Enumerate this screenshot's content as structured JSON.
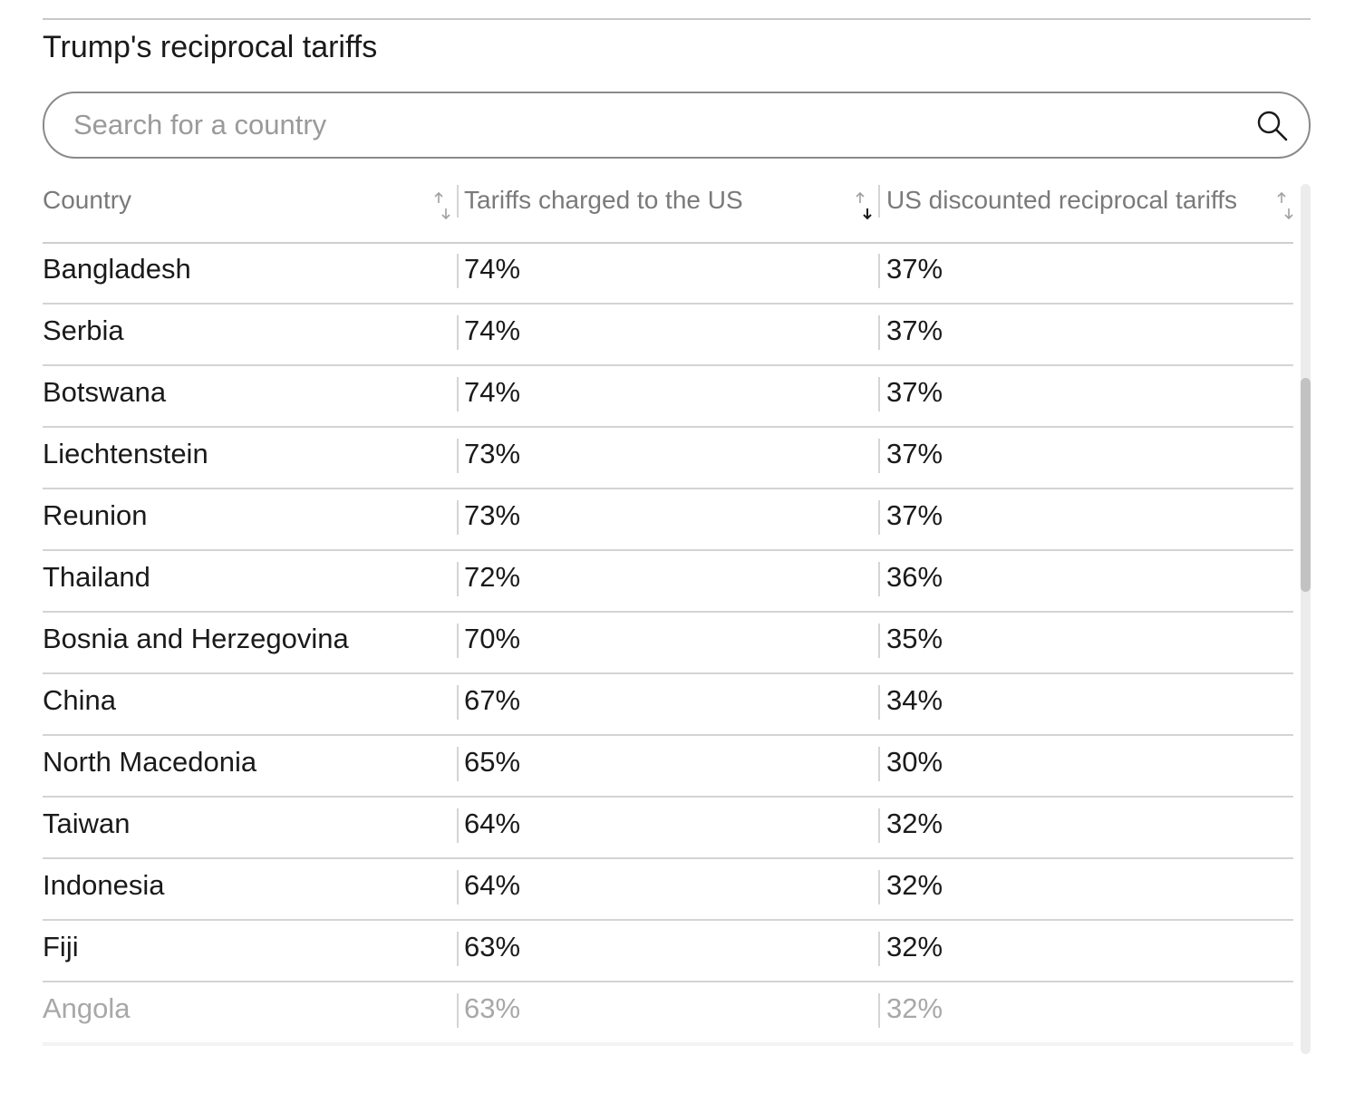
{
  "widget": {
    "title": "Trump's reciprocal tariffs"
  },
  "search": {
    "placeholder": "Search for a country",
    "value": "",
    "icon": "search-icon"
  },
  "table": {
    "columns": [
      {
        "label": "Country",
        "sort": "none"
      },
      {
        "label": "Tariffs charged to the US",
        "sort": "descending"
      },
      {
        "label": "US discounted reciprocal tariffs",
        "sort": "none"
      }
    ],
    "rows": [
      {
        "country": "Bangladesh",
        "charged": "74%",
        "reciprocal": "37%"
      },
      {
        "country": "Serbia",
        "charged": "74%",
        "reciprocal": "37%"
      },
      {
        "country": "Botswana",
        "charged": "74%",
        "reciprocal": "37%"
      },
      {
        "country": "Liechtenstein",
        "charged": "73%",
        "reciprocal": "37%"
      },
      {
        "country": "Reunion",
        "charged": "73%",
        "reciprocal": "37%"
      },
      {
        "country": "Thailand",
        "charged": "72%",
        "reciprocal": "36%"
      },
      {
        "country": "Bosnia and Herzegovina",
        "charged": "70%",
        "reciprocal": "35%"
      },
      {
        "country": "China",
        "charged": "67%",
        "reciprocal": "34%"
      },
      {
        "country": "North Macedonia",
        "charged": "65%",
        "reciprocal": "30%"
      },
      {
        "country": "Taiwan",
        "charged": "64%",
        "reciprocal": "32%"
      },
      {
        "country": "Indonesia",
        "charged": "64%",
        "reciprocal": "32%"
      },
      {
        "country": "Fiji",
        "charged": "63%",
        "reciprocal": "32%"
      },
      {
        "country": "Angola",
        "charged": "63%",
        "reciprocal": "32%"
      }
    ]
  },
  "colors": {
    "text": "#1a1a1a",
    "header_text": "#7a7a7a",
    "placeholder": "#9a9a9a",
    "border": "#8a8a8a",
    "row_divider": "#d4d4d4",
    "faded_text": "#a8a8a8"
  }
}
